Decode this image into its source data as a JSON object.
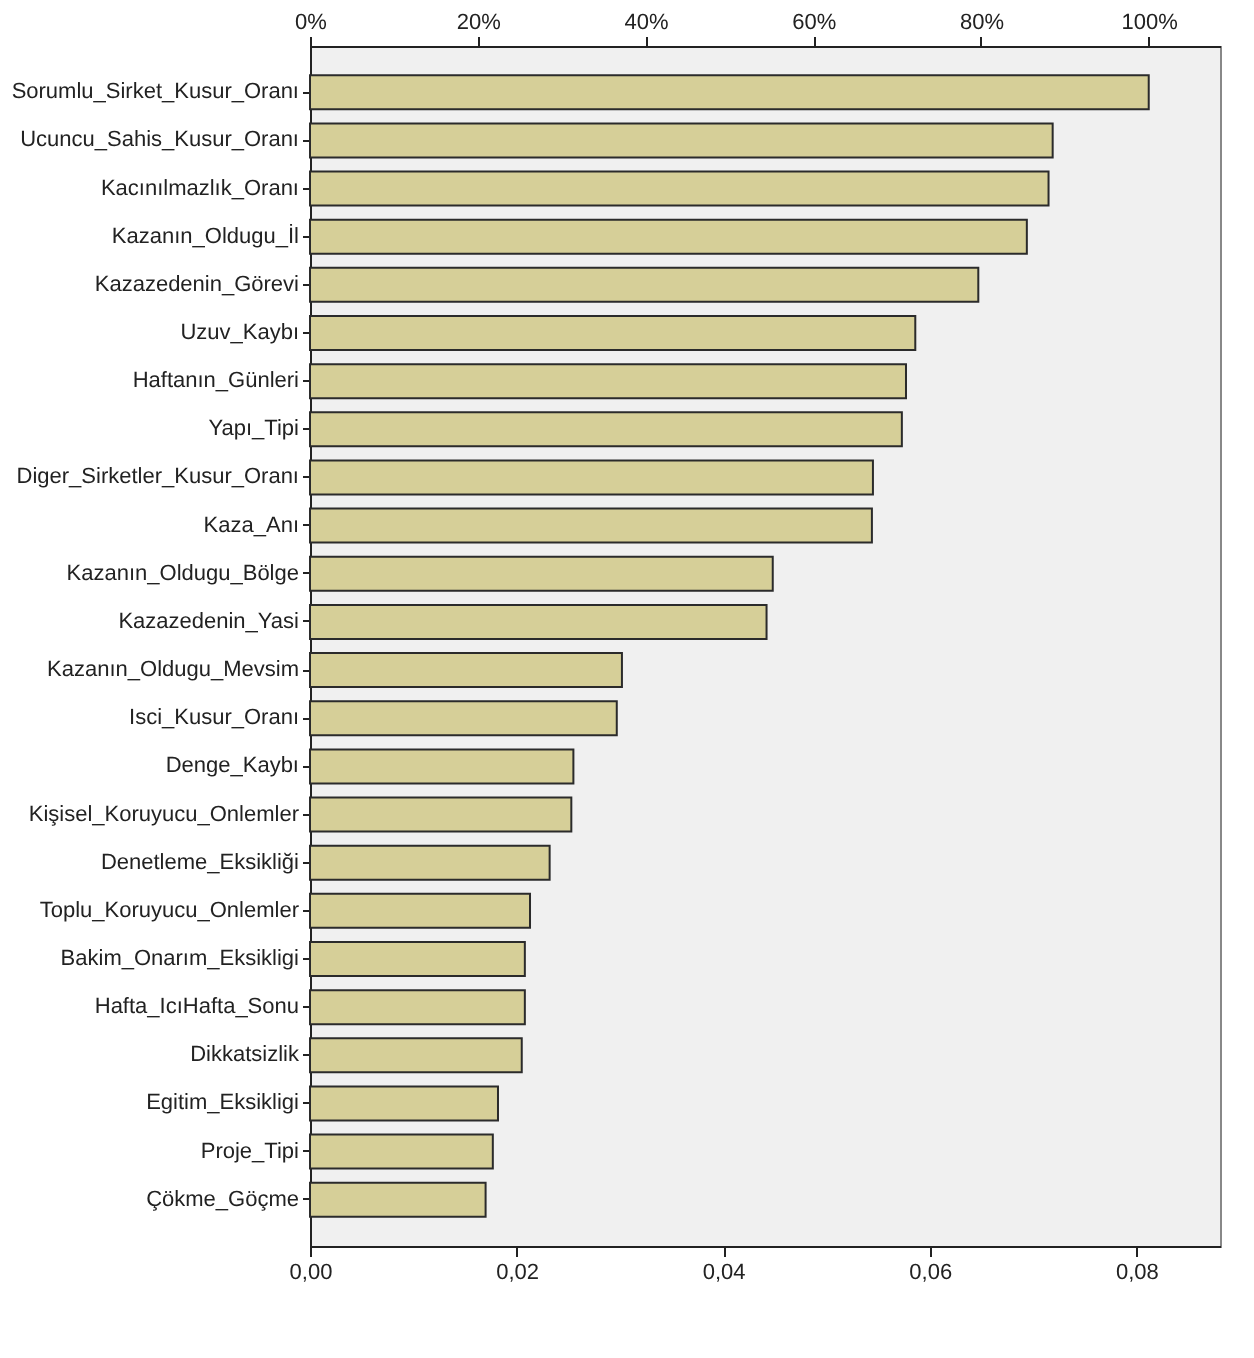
{
  "chart_data": {
    "type": "bar",
    "orientation": "horizontal",
    "color": "#d6cf98",
    "categories": [
      "Sorumlu_Sirket_Kusur_Oranı",
      "Ucuncu_Sahis_Kusur_Oranı",
      "Kacınılmazlık_Oranı",
      "Kazanın_Oldugu_İl",
      "Kazazedenin_Görevi",
      "Uzuv_Kaybı",
      "Haftanın_Günleri",
      "Yapı_Tipi",
      "Diger_Sirketler_Kusur_Oranı",
      "Kaza_Anı",
      "Kazanın_Oldugu_Bölge",
      "Kazazedenin_Yasi",
      "Kazanın_Oldugu_Mevsim",
      "Isci_Kusur_Oranı",
      "Denge_Kaybı",
      "Kişisel_Koruyucu_Onlemler",
      "Denetleme_Eksikliği",
      "Toplu_Koruyucu_Onlemler",
      "Bakim_Onarım_Eksikligi",
      "Hafta_IcıHafta_Sonu",
      "Dikkatsizlik",
      "Egitim_Eksikligi",
      "Proje_Tipi",
      "Çökme_Göçme"
    ],
    "values": [
      0.0812,
      0.0719,
      0.0715,
      0.0694,
      0.0647,
      0.0586,
      0.0577,
      0.0573,
      0.0545,
      0.0544,
      0.0448,
      0.0442,
      0.0302,
      0.0297,
      0.0255,
      0.0253,
      0.0232,
      0.0213,
      0.0208,
      0.0208,
      0.0205,
      0.0182,
      0.0177,
      0.017
    ],
    "xlim": [
      0,
      0.0881
    ],
    "xticks": [
      {
        "value": 0,
        "label": "0,00"
      },
      {
        "value": 0.02,
        "label": "0,02"
      },
      {
        "value": 0.04,
        "label": "0,04"
      },
      {
        "value": 0.06,
        "label": "0,06"
      },
      {
        "value": 0.08,
        "label": "0,08"
      }
    ],
    "x2lim": [
      0,
      108.5
    ],
    "x2ticks": [
      {
        "value": 0,
        "label": "0%"
      },
      {
        "value": 20,
        "label": "20%"
      },
      {
        "value": 40,
        "label": "40%"
      },
      {
        "value": 60,
        "label": "60%"
      },
      {
        "value": 80,
        "label": "80%"
      },
      {
        "value": 100,
        "label": "100%"
      }
    ],
    "grid": false
  }
}
